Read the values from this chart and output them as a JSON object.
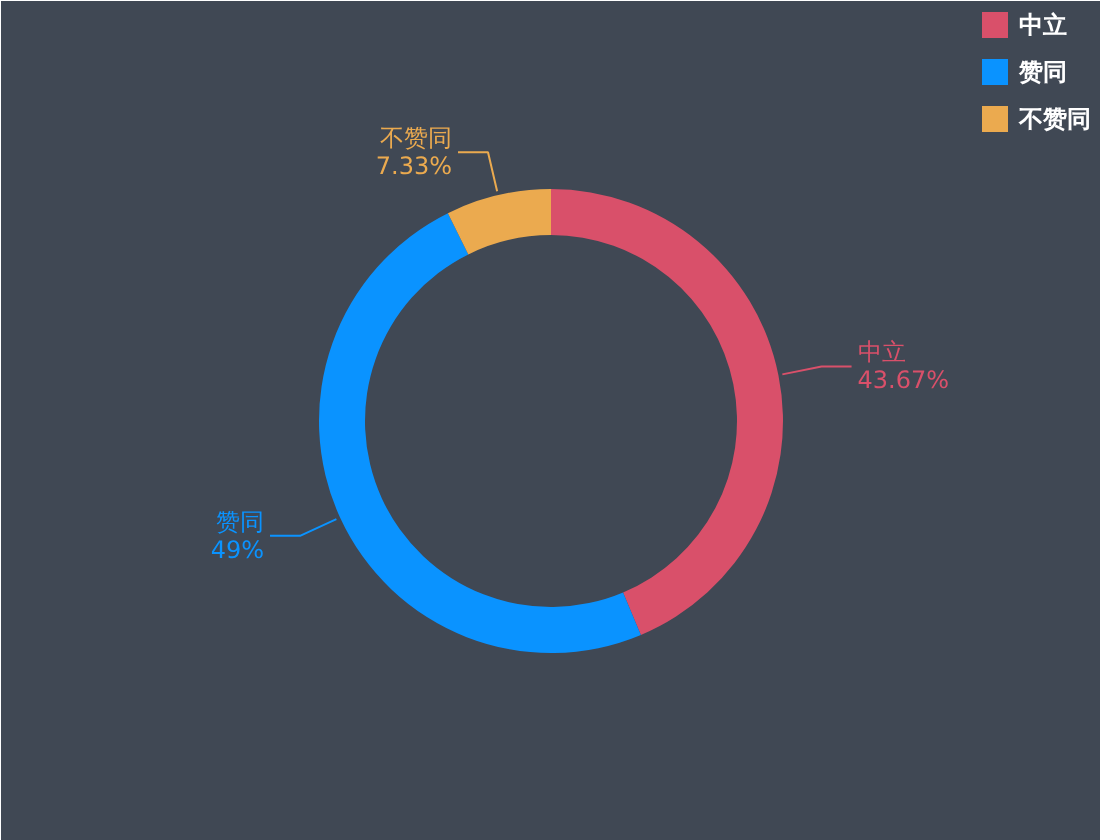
{
  "chart_data": {
    "type": "donut",
    "categories": [
      "中立",
      "赞同",
      "不赞同"
    ],
    "values": [
      43.67,
      49,
      7.33
    ],
    "colors": [
      "#d9506a",
      "#0a93ff",
      "#ebaa4f"
    ],
    "value_labels": [
      "43.67%",
      "49%",
      "7.33%"
    ],
    "legend": "top right"
  }
}
